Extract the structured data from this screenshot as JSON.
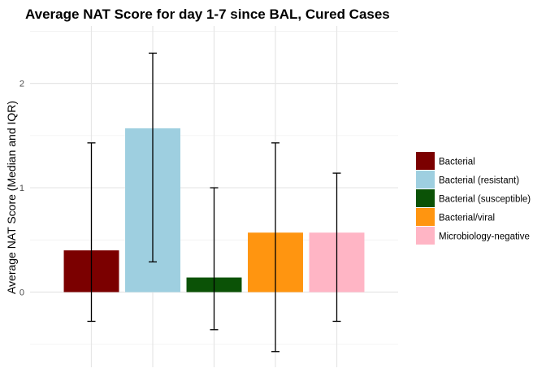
{
  "chart_data": {
    "type": "bar",
    "title": "Average NAT Score for day 1-7 since BAL, Cured Cases",
    "xlabel": "",
    "ylabel": "Average NAT Score (Median and IQR)",
    "ylim": [
      -0.72,
      2.55
    ],
    "yticks": [
      0,
      1,
      2
    ],
    "ytick_labels": [
      "0",
      "1",
      "2"
    ],
    "grid": true,
    "legend_position": "right",
    "categories": [
      "Bacterial",
      "Bacterial (resistant)",
      "Bacterial (susceptible)",
      "Bacterial/viral",
      "Microbiology-negative"
    ],
    "values": [
      0.4,
      1.57,
      0.14,
      0.57,
      0.57
    ],
    "error_low": [
      -0.28,
      0.29,
      -0.36,
      -0.57,
      -0.28
    ],
    "error_high": [
      1.43,
      2.29,
      1.0,
      1.43,
      1.14
    ],
    "colors": [
      "#7b0000",
      "#9ecfe0",
      "#0b5206",
      "#ff9510",
      "#ffb5c5"
    ],
    "legend": [
      "Bacterial",
      "Bacterial (resistant)",
      "Bacterial (susceptible)",
      "Bacterial/viral",
      "Microbiology-negative"
    ]
  }
}
